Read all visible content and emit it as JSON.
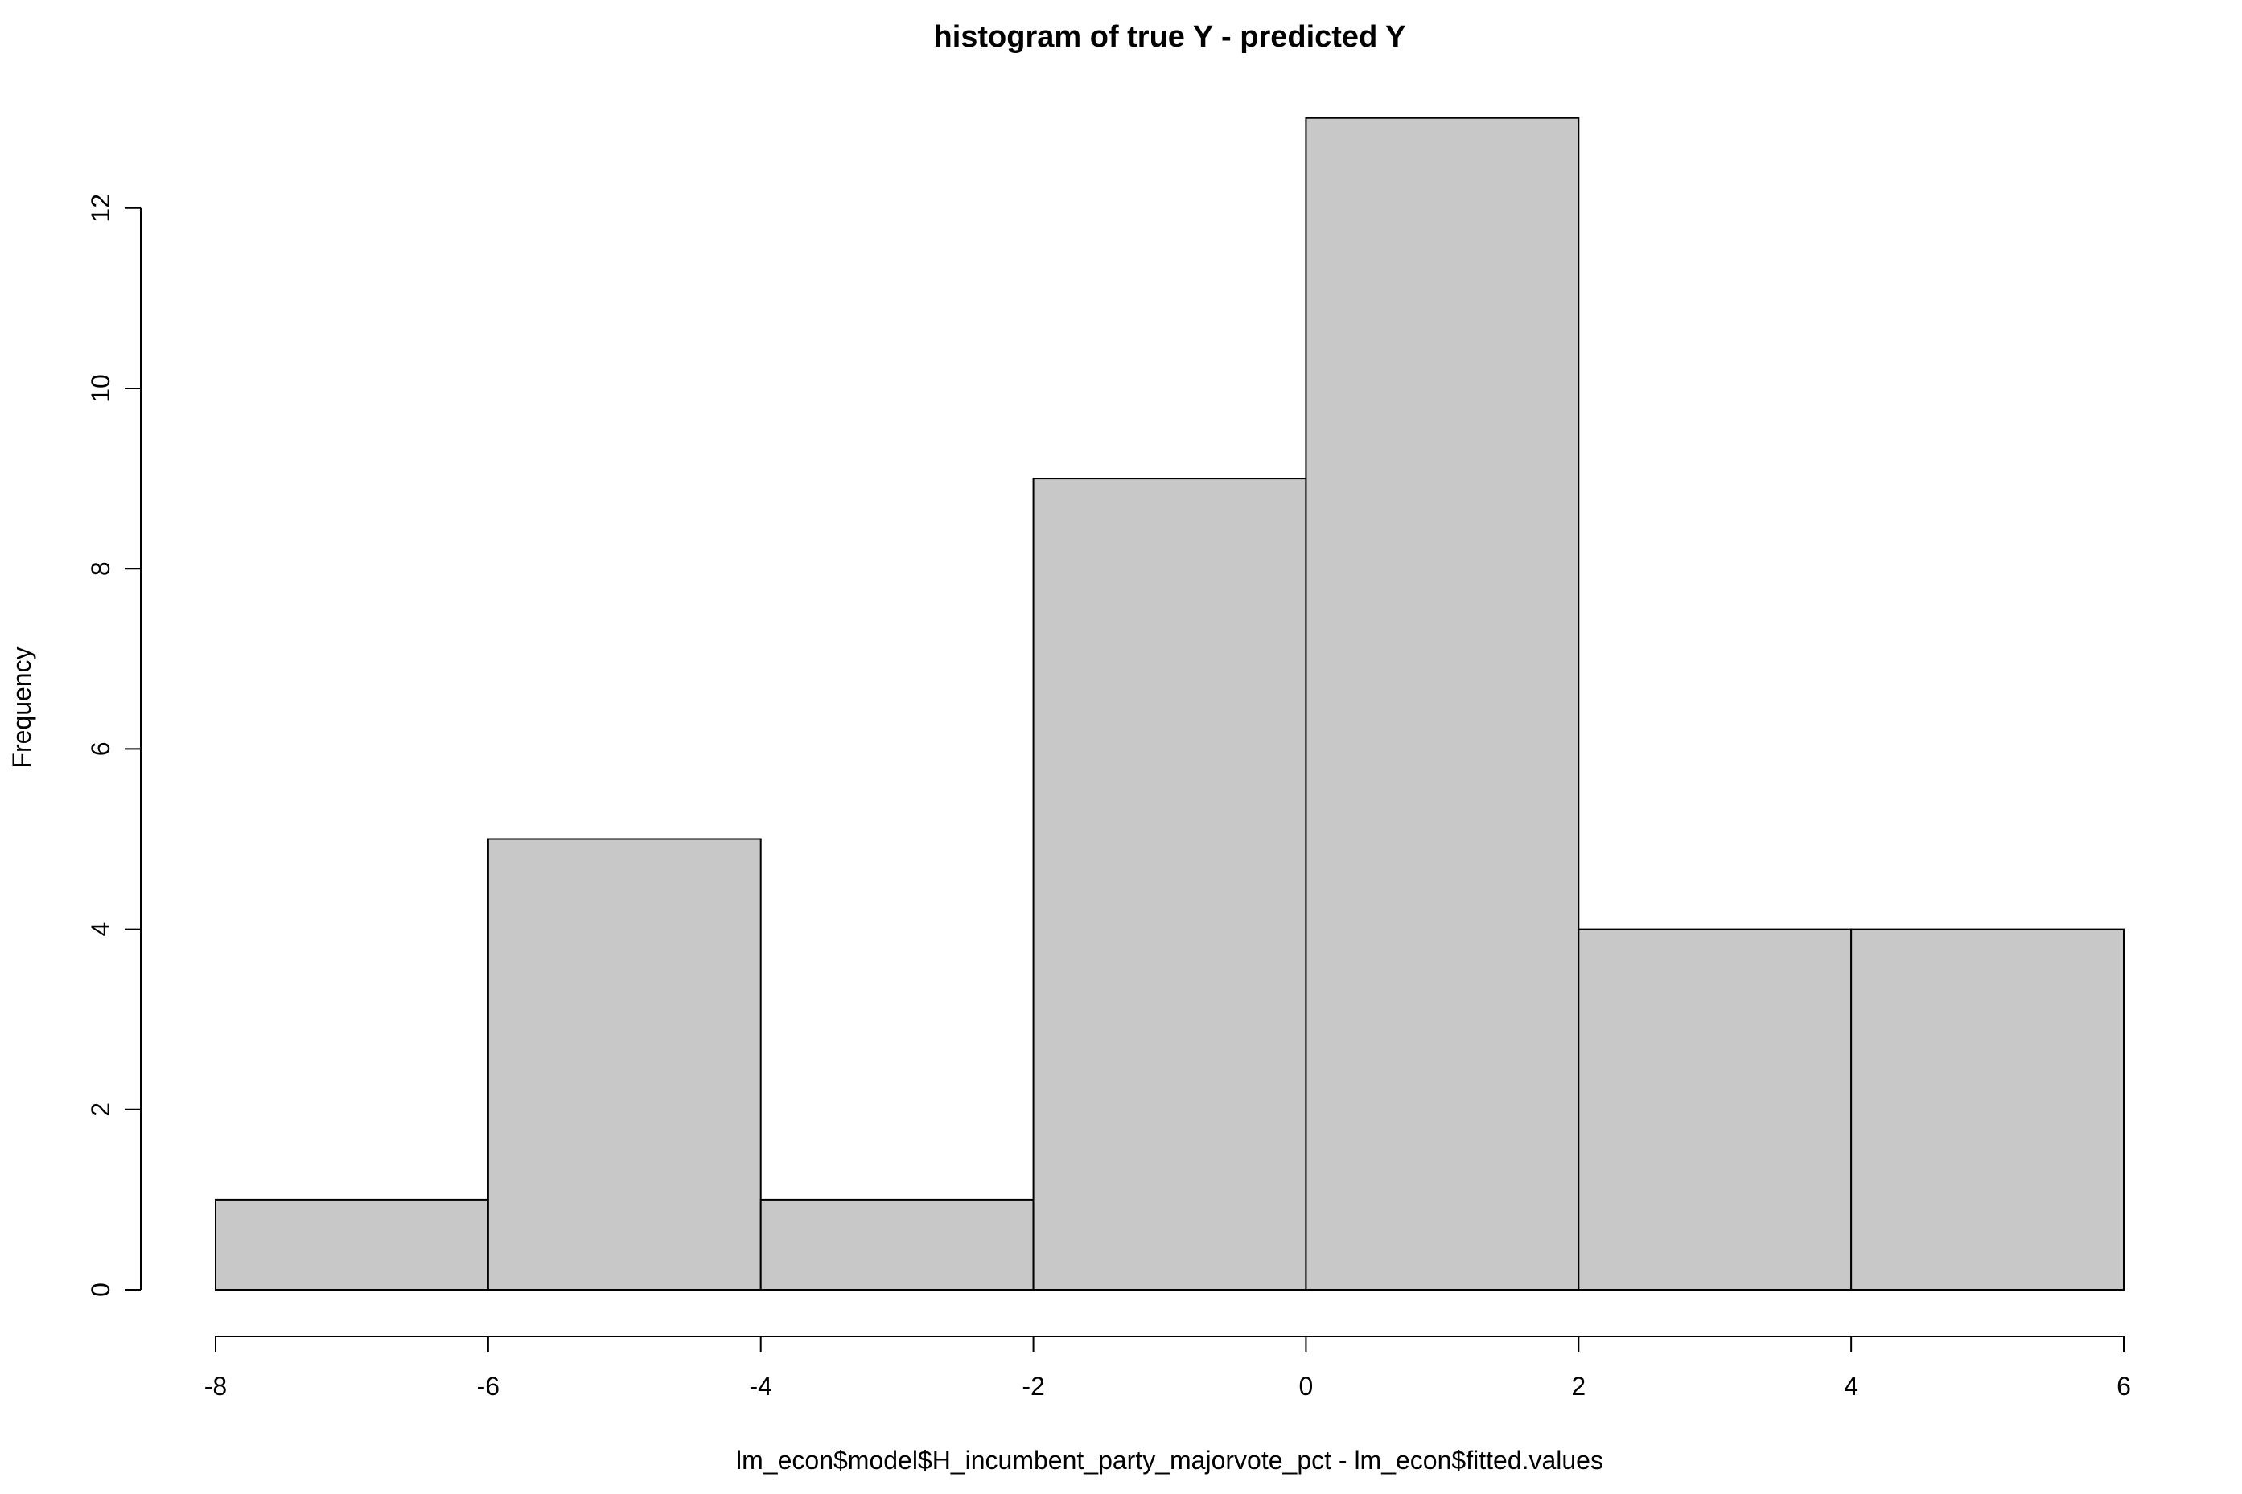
{
  "chart_data": {
    "type": "bar",
    "title": "histogram of true Y - predicted Y",
    "xlabel": "lm_econ$model$H_incumbent_party_majorvote_pct - lm_econ$fitted.values",
    "ylabel": "Frequency",
    "bins": [
      {
        "from": -8,
        "to": -6,
        "count": 1
      },
      {
        "from": -6,
        "to": -4,
        "count": 5
      },
      {
        "from": -4,
        "to": -2,
        "count": 1
      },
      {
        "from": -2,
        "to": 0,
        "count": 9
      },
      {
        "from": 0,
        "to": 2,
        "count": 13
      },
      {
        "from": 2,
        "to": 4,
        "count": 4
      },
      {
        "from": 4,
        "to": 6,
        "count": 4
      }
    ],
    "xlim": [
      -8,
      6
    ],
    "ylim": [
      0,
      13
    ],
    "x_ticks": [
      "-8",
      "-6",
      "-4",
      "-2",
      "0",
      "2",
      "4",
      "6"
    ],
    "y_ticks": [
      "0",
      "2",
      "4",
      "6",
      "8",
      "10",
      "12"
    ],
    "bar_color": "#c8c8c8",
    "border_color": "#000000",
    "grid": false,
    "legend": "none"
  }
}
